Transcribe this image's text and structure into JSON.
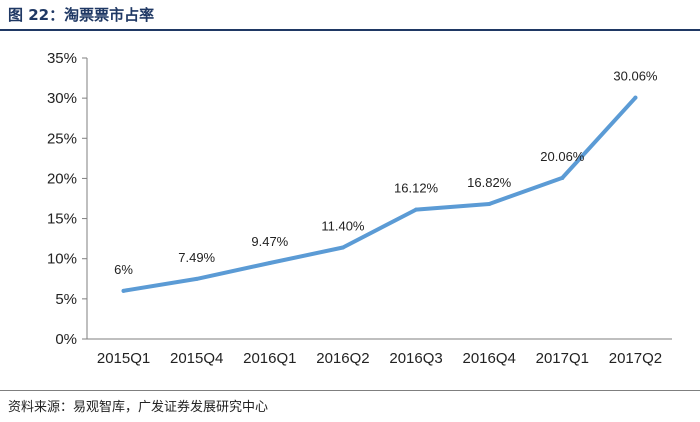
{
  "header": {
    "title": "图 22：淘票票市占率"
  },
  "footer": {
    "source": "资料来源：易观智库，广发证券发展研究中心"
  },
  "colors": {
    "line": "#5b9bd5",
    "axis": "#7f7f7f",
    "title": "#1f3864"
  },
  "chart_data": {
    "type": "line",
    "title": "淘票票市占率",
    "categories": [
      "2015Q1",
      "2015Q4",
      "2016Q1",
      "2016Q2",
      "2016Q3",
      "2016Q4",
      "2017Q1",
      "2017Q2"
    ],
    "values": [
      6,
      7.49,
      9.47,
      11.4,
      16.12,
      16.82,
      20.06,
      30.06
    ],
    "data_labels": [
      "6%",
      "7.49%",
      "9.47%",
      "11.40%",
      "16.12%",
      "16.82%",
      "20.06%",
      "30.06%"
    ],
    "y_ticks": [
      "0%",
      "5%",
      "10%",
      "15%",
      "20%",
      "25%",
      "30%",
      "35%"
    ],
    "ylim": [
      0,
      35
    ],
    "grid": false,
    "legend": "none"
  }
}
